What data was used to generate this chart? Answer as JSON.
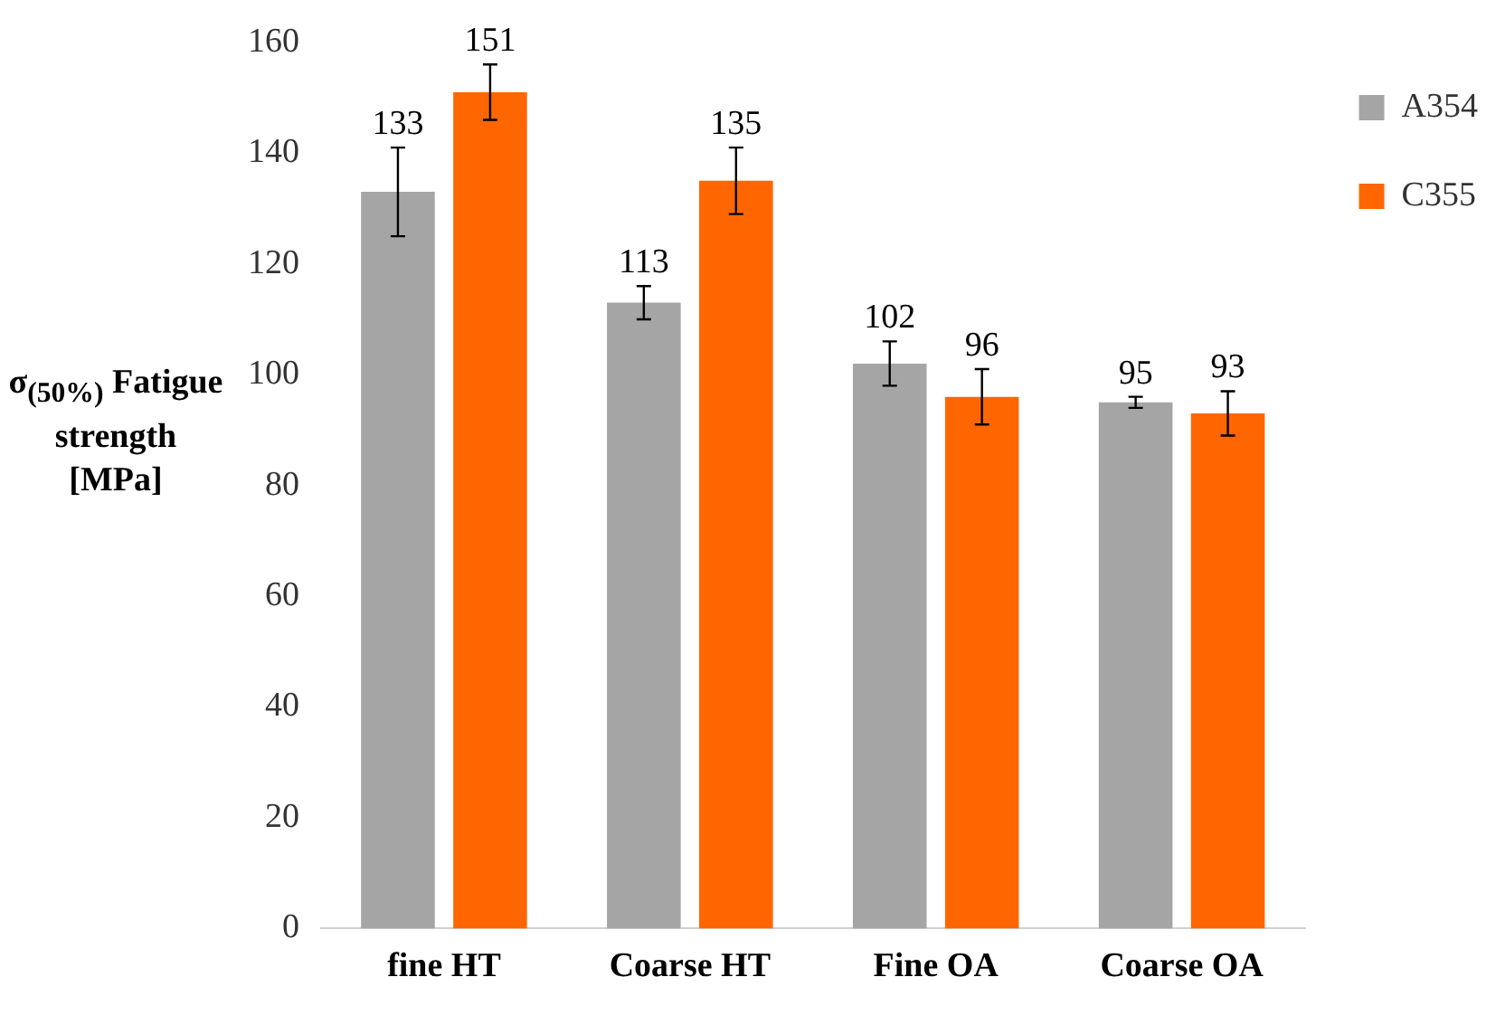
{
  "chart_data": {
    "type": "bar",
    "ylabel": "σ$_{(50%)}$ Fatigue strength [MPa]",
    "categories": [
      "fine HT",
      "Coarse HT",
      "Fine OA",
      "Coarse OA"
    ],
    "series": [
      {
        "name": "A354",
        "color": "#a5a5a5",
        "values": [
          133,
          113,
          102,
          95
        ],
        "errors": [
          8,
          3,
          4,
          1
        ]
      },
      {
        "name": "C355",
        "color": "#ff6600",
        "values": [
          151,
          135,
          96,
          93
        ],
        "errors": [
          5,
          6,
          5,
          4
        ]
      }
    ],
    "ylim": [
      0,
      160
    ],
    "yticks": [
      0,
      20,
      40,
      60,
      80,
      100,
      120,
      140,
      160
    ],
    "grid": false,
    "legend": "top right",
    "data_labels": true
  }
}
